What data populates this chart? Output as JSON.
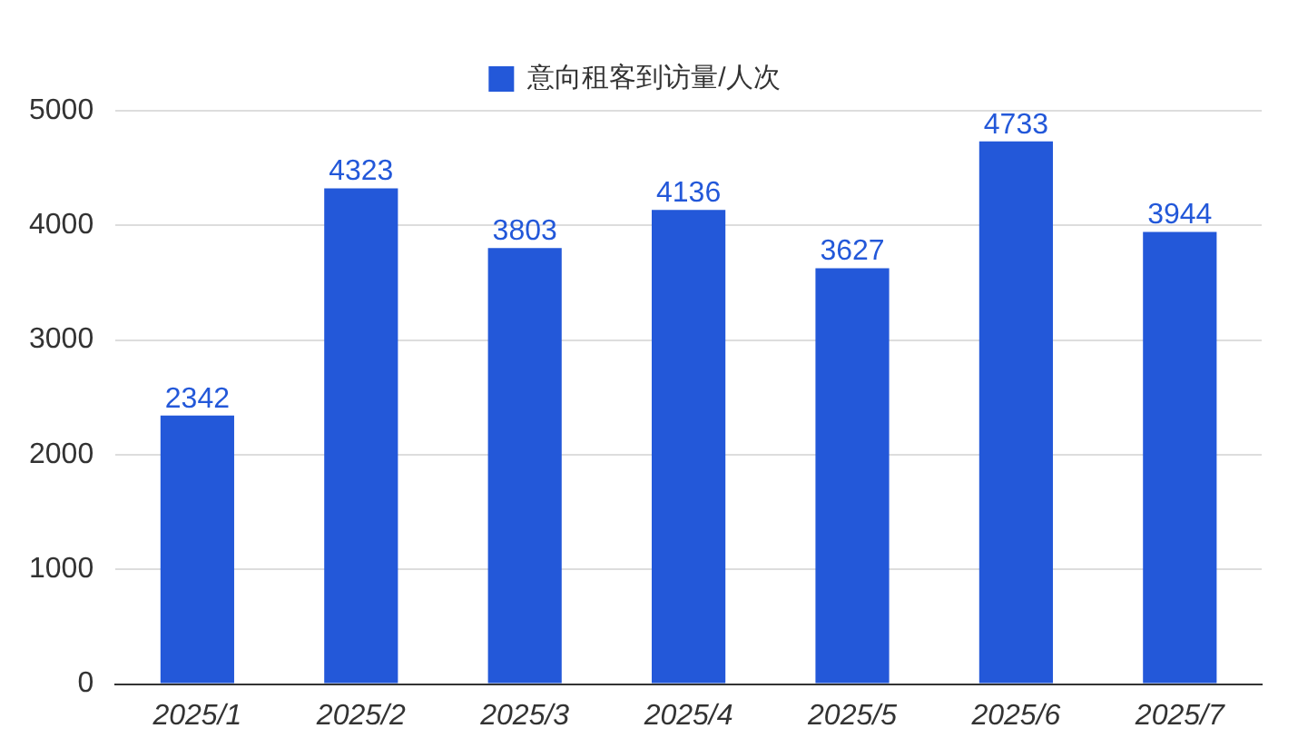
{
  "chart_data": {
    "type": "bar",
    "categories": [
      "2025/1",
      "2025/2",
      "2025/3",
      "2025/4",
      "2025/5",
      "2025/6",
      "2025/7"
    ],
    "series": [
      {
        "name": "意向租客到访量/人次",
        "color": "#2358d9",
        "values": [
          2342,
          4323,
          3803,
          4136,
          3627,
          4733,
          3944
        ]
      }
    ],
    "ylim": [
      0,
      5000
    ],
    "yticks": [
      0,
      1000,
      2000,
      3000,
      4000,
      5000
    ],
    "grid": "y",
    "legend": "top",
    "data_labels": true
  }
}
